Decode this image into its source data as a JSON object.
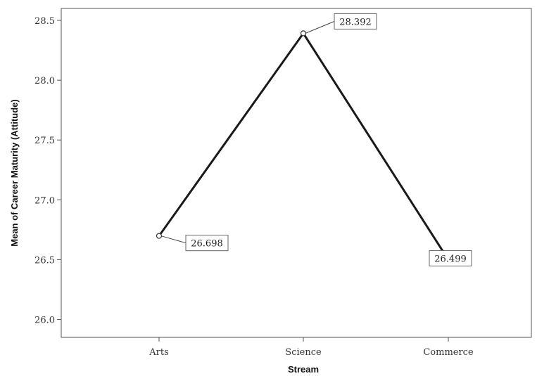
{
  "chart_data": {
    "type": "line",
    "categories": [
      "Arts",
      "Science",
      "Commerce"
    ],
    "series": [
      {
        "values": [
          26.698,
          28.392,
          26.499
        ]
      }
    ],
    "data_labels": [
      "26.698",
      "28.392",
      "26.499"
    ],
    "xlabel": "Stream",
    "ylabel": "Mean of Career Maturity (Attitude)",
    "ylim": [
      25.85,
      28.6
    ],
    "yticks": [
      26.0,
      26.5,
      27.0,
      27.5,
      28.0,
      28.5
    ],
    "ytick_labels": [
      "26.0",
      "26.5",
      "27.0",
      "27.5",
      "28.0",
      "28.5"
    ],
    "grid": false,
    "legend": "none",
    "line_color": "#1a1a1a"
  }
}
